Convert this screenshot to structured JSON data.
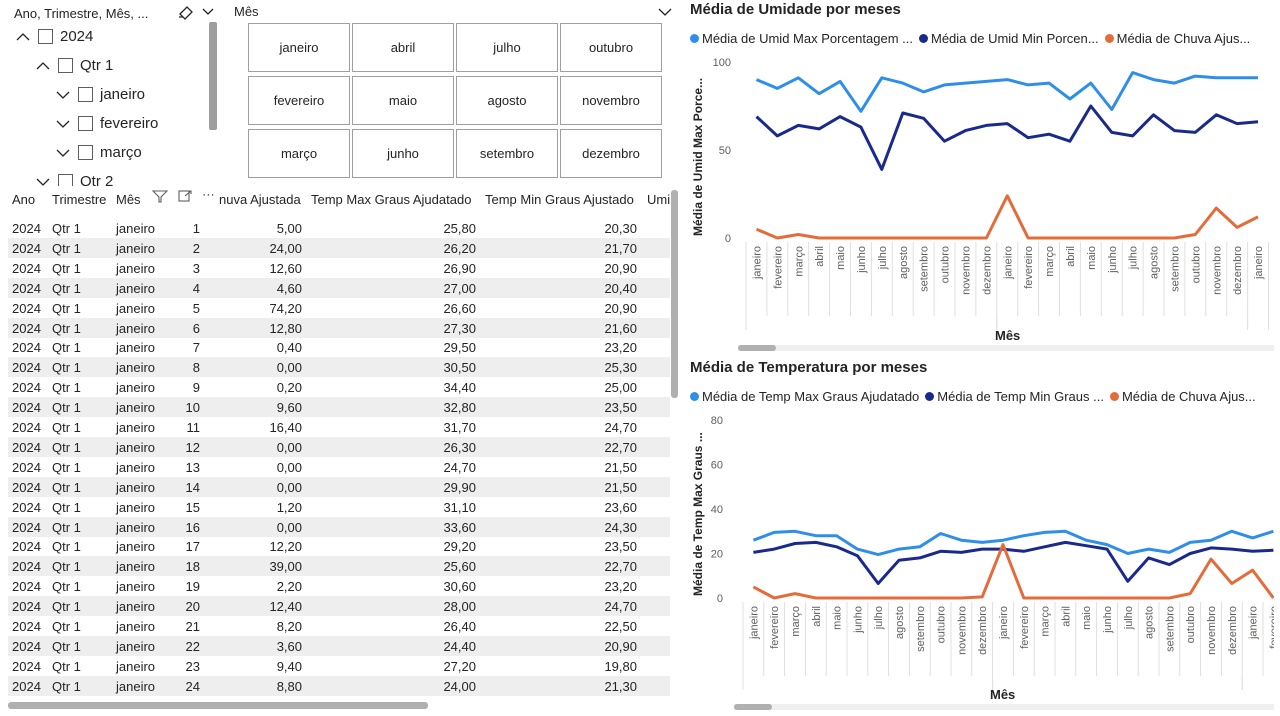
{
  "slicer_tree": {
    "header": "Ano, Trimestre, Mês, ...",
    "items": [
      {
        "label": "2024",
        "expanded": true,
        "level": 0
      },
      {
        "label": "Qtr 1",
        "expanded": true,
        "level": 1
      },
      {
        "label": "janeiro",
        "expanded": false,
        "level": 2
      },
      {
        "label": "fevereiro",
        "expanded": false,
        "level": 2
      },
      {
        "label": "março",
        "expanded": false,
        "level": 2
      },
      {
        "label": "Qtr 2",
        "expanded": false,
        "level": 1
      }
    ]
  },
  "slicer_mes": {
    "title": "Mês",
    "tiles": [
      "janeiro",
      "abril",
      "julho",
      "outubro",
      "fevereiro",
      "maio",
      "agosto",
      "novembro",
      "março",
      "junho",
      "setembro",
      "dezembro"
    ]
  },
  "table": {
    "headers": {
      "ano": "Ano",
      "trimestre": "Trimestre",
      "mes": "Mês",
      "chuva": "nuva Ajustada",
      "tmax": "Temp Max Graus Ajudatado",
      "tmin": "Temp Min Graus Ajustado",
      "umid": "Umi"
    },
    "rows": [
      [
        "2024",
        "Qtr 1",
        "janeiro",
        "1",
        "5,00",
        "25,80",
        "20,30"
      ],
      [
        "2024",
        "Qtr 1",
        "janeiro",
        "2",
        "24,00",
        "26,20",
        "21,70"
      ],
      [
        "2024",
        "Qtr 1",
        "janeiro",
        "3",
        "12,60",
        "26,90",
        "20,90"
      ],
      [
        "2024",
        "Qtr 1",
        "janeiro",
        "4",
        "4,60",
        "27,00",
        "20,40"
      ],
      [
        "2024",
        "Qtr 1",
        "janeiro",
        "5",
        "74,20",
        "26,60",
        "20,90"
      ],
      [
        "2024",
        "Qtr 1",
        "janeiro",
        "6",
        "12,80",
        "27,30",
        "21,60"
      ],
      [
        "2024",
        "Qtr 1",
        "janeiro",
        "7",
        "0,40",
        "29,50",
        "23,20"
      ],
      [
        "2024",
        "Qtr 1",
        "janeiro",
        "8",
        "0,00",
        "30,50",
        "25,30"
      ],
      [
        "2024",
        "Qtr 1",
        "janeiro",
        "9",
        "0,20",
        "34,40",
        "25,00"
      ],
      [
        "2024",
        "Qtr 1",
        "janeiro",
        "10",
        "9,60",
        "32,80",
        "23,50"
      ],
      [
        "2024",
        "Qtr 1",
        "janeiro",
        "11",
        "16,40",
        "31,70",
        "24,70"
      ],
      [
        "2024",
        "Qtr 1",
        "janeiro",
        "12",
        "0,00",
        "26,30",
        "22,70"
      ],
      [
        "2024",
        "Qtr 1",
        "janeiro",
        "13",
        "0,00",
        "24,70",
        "21,50"
      ],
      [
        "2024",
        "Qtr 1",
        "janeiro",
        "14",
        "0,00",
        "29,90",
        "21,50"
      ],
      [
        "2024",
        "Qtr 1",
        "janeiro",
        "15",
        "1,20",
        "31,10",
        "23,60"
      ],
      [
        "2024",
        "Qtr 1",
        "janeiro",
        "16",
        "0,00",
        "33,60",
        "24,30"
      ],
      [
        "2024",
        "Qtr 1",
        "janeiro",
        "17",
        "12,20",
        "29,20",
        "23,50"
      ],
      [
        "2024",
        "Qtr 1",
        "janeiro",
        "18",
        "39,00",
        "25,60",
        "22,70"
      ],
      [
        "2024",
        "Qtr 1",
        "janeiro",
        "19",
        "2,20",
        "30,60",
        "23,20"
      ],
      [
        "2024",
        "Qtr 1",
        "janeiro",
        "20",
        "12,40",
        "28,00",
        "24,70"
      ],
      [
        "2024",
        "Qtr 1",
        "janeiro",
        "21",
        "8,20",
        "26,40",
        "22,50"
      ],
      [
        "2024",
        "Qtr 1",
        "janeiro",
        "22",
        "3,60",
        "24,40",
        "20,90"
      ],
      [
        "2024",
        "Qtr 1",
        "janeiro",
        "23",
        "9,40",
        "27,20",
        "19,80"
      ],
      [
        "2024",
        "Qtr 1",
        "janeiro",
        "24",
        "8,80",
        "24,00",
        "21,30"
      ]
    ]
  },
  "colors": {
    "series1": "#2f8fe8",
    "series2": "#1a2a8c",
    "series3": "#e46c3a",
    "grid": "#e1dfdd",
    "scroll": "#b0b0b0"
  },
  "chart_data": [
    {
      "type": "line",
      "title": "Média de Umidade por meses",
      "legend": [
        "Média de Umid Max Porcentagem ...",
        "Média de Umid Min Porcen...",
        "Média de Chuva Ajus..."
      ],
      "xlabel": "Mês",
      "ylabel": "Média de Umid Max Porce...",
      "ylim": [
        0,
        100
      ],
      "yticks": [
        "0",
        "50",
        "100"
      ],
      "categories": [
        "janeiro",
        "fevereiro",
        "março",
        "abril",
        "maio",
        "junho",
        "julho",
        "agosto",
        "setembro",
        "outubro",
        "novembro",
        "dezembro",
        "janeiro",
        "fevereiro",
        "março",
        "abril",
        "maio",
        "junho",
        "julho",
        "agosto",
        "setembro",
        "outubro",
        "novembro",
        "dezembro",
        "janeiro"
      ],
      "groups": [
        "1",
        "2",
        "3"
      ],
      "series": [
        {
          "name": "Média de Umid Max Porcentagem",
          "values": [
            90,
            85,
            91,
            82,
            89,
            72,
            91,
            88,
            83,
            87,
            88,
            89,
            90,
            87,
            88,
            79,
            88,
            73,
            94,
            90,
            88,
            92,
            91,
            91,
            91
          ]
        },
        {
          "name": "Média de Umid Min Porcentagem",
          "values": [
            69,
            58,
            64,
            62,
            69,
            63,
            39,
            71,
            68,
            55,
            61,
            64,
            65,
            57,
            59,
            55,
            75,
            60,
            58,
            70,
            61,
            60,
            70,
            65,
            66
          ]
        },
        {
          "name": "Média de Chuva Ajustada",
          "values": [
            5,
            0,
            2,
            0,
            0,
            0,
            0,
            0,
            0,
            0,
            0,
            0,
            24,
            0,
            0,
            0,
            0,
            0,
            0,
            0,
            0,
            2,
            17,
            6,
            12
          ]
        }
      ]
    },
    {
      "type": "line",
      "title": "Média de Temperatura por meses",
      "legend": [
        "Média de Temp Max Graus Ajudatado",
        "Média de Temp Min Graus ...",
        "Média de Chuva Ajus..."
      ],
      "xlabel": "Mês",
      "ylabel": "Média de Temp Max Graus ...",
      "ylim": [
        0,
        80
      ],
      "yticks": [
        "0",
        "20",
        "40",
        "60",
        "80"
      ],
      "categories": [
        "janeiro",
        "fevereiro",
        "março",
        "abril",
        "maio",
        "junho",
        "julho",
        "agosto",
        "setembro",
        "outubro",
        "novembro",
        "dezembro",
        "janeiro",
        "fevereiro",
        "março",
        "abril",
        "maio",
        "junho",
        "julho",
        "agosto",
        "setembro",
        "outubro",
        "novembro",
        "dezembro",
        "janeiro",
        "fevereiro"
      ],
      "groups": [
        "1",
        "2",
        "3"
      ],
      "series": [
        {
          "name": "Média de Temp Max Graus Ajudatado",
          "values": [
            26,
            29.5,
            30,
            28,
            28,
            22,
            19.5,
            22,
            23,
            29,
            26,
            25,
            26,
            28,
            29.5,
            30,
            26,
            24,
            20,
            22,
            20.5,
            25,
            26,
            30,
            27,
            30
          ]
        },
        {
          "name": "Média de Temp Min Graus Ajustado",
          "values": [
            20.5,
            22,
            24.5,
            25,
            23,
            19,
            6.5,
            17,
            18,
            21,
            20.5,
            22,
            22,
            21,
            23,
            25,
            23.5,
            22,
            7.5,
            18,
            15,
            20,
            22.5,
            22,
            21,
            21.5
          ]
        },
        {
          "name": "Média de Chuva Ajustada",
          "values": [
            5,
            0,
            2,
            0,
            0,
            0,
            0,
            0,
            0,
            0,
            0,
            0.5,
            24,
            0,
            0,
            0,
            0,
            0,
            0,
            0,
            0,
            2,
            17.5,
            6.5,
            12.5,
            0
          ]
        }
      ]
    }
  ]
}
